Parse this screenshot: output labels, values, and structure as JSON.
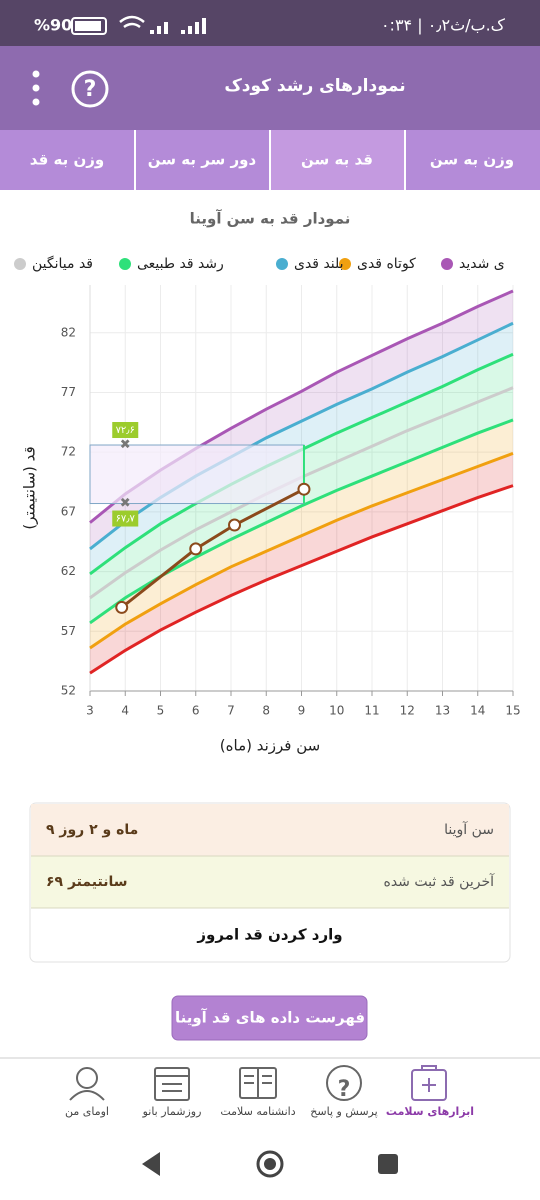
{
  "status": {
    "time": "۰:۳۴ | ۰٫۲ک.ب/ث",
    "battery": "%90"
  },
  "header": {
    "title": "نمودارهای رشد کودک"
  },
  "tabs": [
    "وزن به سن",
    "قد به سن",
    "دور سر به سن",
    "وزن به قد"
  ],
  "chart_data": {
    "type": "line",
    "title": "نمودار قد به سن آوینا",
    "x_label": "سن فرزند (ماه)",
    "y_label": "قد (سانتیمتر)",
    "x": [
      3,
      4,
      5,
      6,
      7,
      8,
      9,
      10,
      11,
      12,
      13,
      14,
      15
    ],
    "series": [
      {
        "color": "#e02424",
        "values": [
          53.5,
          55.4,
          57.1,
          58.6,
          60.0,
          61.3,
          62.5,
          63.7,
          64.9,
          66.0,
          67.1,
          68.2,
          69.2
        ]
      },
      {
        "name": "کوتاه قدی",
        "color": "#f0a010",
        "values": [
          55.6,
          57.6,
          59.3,
          60.9,
          62.4,
          63.7,
          65.0,
          66.3,
          67.5,
          68.6,
          69.7,
          70.8,
          71.9
        ]
      },
      {
        "color": "#2ee07a",
        "values": [
          57.7,
          59.8,
          61.6,
          63.2,
          64.7,
          66.1,
          67.5,
          68.8,
          70.0,
          71.2,
          72.4,
          73.6,
          74.7
        ]
      },
      {
        "name": "قد میانگین",
        "color": "#cccccc",
        "values": [
          59.8,
          61.9,
          63.8,
          65.5,
          67.0,
          68.5,
          69.9,
          71.2,
          72.5,
          73.8,
          75.0,
          76.2,
          77.4
        ]
      },
      {
        "name": "رشد قد طبیعی",
        "color": "#2ee07a",
        "values": [
          61.8,
          64.0,
          66.0,
          67.7,
          69.3,
          70.8,
          72.2,
          73.6,
          74.9,
          76.2,
          77.5,
          78.9,
          80.2
        ]
      },
      {
        "name": "بلند قدی",
        "color": "#4aaed0",
        "values": [
          63.9,
          66.2,
          68.2,
          70.0,
          71.6,
          73.2,
          74.6,
          76.0,
          77.3,
          78.7,
          80.0,
          81.4,
          82.8
        ]
      },
      {
        "name": "ی شدید",
        "color": "#a957b5",
        "values": [
          66.1,
          68.5,
          70.5,
          72.3,
          74.0,
          75.6,
          77.1,
          78.7,
          80.1,
          81.5,
          82.8,
          84.2,
          85.5
        ]
      }
    ],
    "child": {
      "color": "#8b4a1c",
      "x": [
        3.9,
        6,
        7.1,
        9.07
      ],
      "values": [
        59.0,
        63.9,
        65.9,
        68.9
      ]
    },
    "range_markers": {
      "x": 4,
      "values": [
        72.6,
        67.7
      ],
      "value_labels": [
        "۷۲٫۶",
        "۶۷٫۷"
      ]
    },
    "xlim": [
      3,
      15
    ],
    "ylim": [
      52,
      86
    ],
    "xticks": [
      3,
      4,
      5,
      6,
      7,
      8,
      9,
      10,
      11,
      12,
      13,
      14,
      15
    ],
    "yticks": [
      52,
      57,
      62,
      67,
      72,
      77,
      82
    ],
    "grid": true
  },
  "info": {
    "rows": [
      [
        "سن آوینا",
        "۹ ماه و ۲ روز"
      ],
      [
        "آخرین قد ثبت شده",
        "۶۹ سانتیمتر"
      ]
    ],
    "action": "وارد کردن قد امروز"
  },
  "list_button": "فهرست داده های قد آوینا",
  "nav": [
    "ابزارهای سلامت",
    "پرسش و پاسخ",
    "دانشنامه سلامت",
    "روزشمار بانو",
    "اومای من"
  ]
}
